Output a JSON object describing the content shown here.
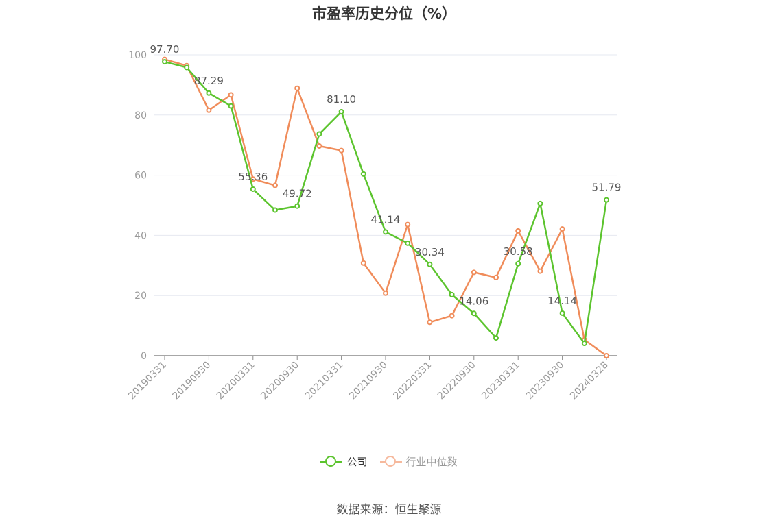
{
  "title": "市盈率历史分位（%）",
  "source": "数据来源：恒生聚源",
  "legend": {
    "company": "公司",
    "industry": "行业中位数"
  },
  "colors": {
    "company": "#5cc42e",
    "industry": "#f08c5a",
    "industry_legend": "#f6b99d",
    "grid": "#e6e8f0",
    "axis": "#8a8a8a",
    "tick_text": "#999999",
    "label_text": "#555555"
  },
  "chart_data": {
    "type": "line",
    "x": [
      "20190331",
      "20190630",
      "20190930",
      "20191231",
      "20200331",
      "20200630",
      "20200930",
      "20201231",
      "20210331",
      "20210630",
      "20210930",
      "20211231",
      "20220331",
      "20220630",
      "20220930",
      "20221231",
      "20230331",
      "20230630",
      "20230930",
      "20231231",
      "20240328"
    ],
    "x_tick_labels": [
      "20190331",
      "20190930",
      "20200331",
      "20200930",
      "20210331",
      "20210930",
      "20220331",
      "20220930",
      "20230331",
      "20230930",
      "20240328"
    ],
    "ylim": [
      0,
      100
    ],
    "y_ticks": [
      0,
      20,
      40,
      60,
      80,
      100
    ],
    "grid": true,
    "legend_position": "bottom",
    "series": [
      {
        "name": "公司",
        "values": [
          97.7,
          95.8,
          87.29,
          83.0,
          55.36,
          48.4,
          49.72,
          73.7,
          81.1,
          60.4,
          41.14,
          37.4,
          30.34,
          20.3,
          14.06,
          5.9,
          30.58,
          50.6,
          14.14,
          4.1,
          51.79
        ]
      },
      {
        "name": "行业中位数",
        "values": [
          98.5,
          96.4,
          81.6,
          86.7,
          58.7,
          56.6,
          88.9,
          69.7,
          68.2,
          30.8,
          20.8,
          43.6,
          11.1,
          13.3,
          27.7,
          26.0,
          41.5,
          28.1,
          42.1,
          5.3,
          0.0
        ]
      }
    ],
    "data_labels": [
      {
        "series": "公司",
        "x": "20190331",
        "value": 97.7,
        "text": "97.70"
      },
      {
        "series": "公司",
        "x": "20190930",
        "value": 87.29,
        "text": "87.29"
      },
      {
        "series": "公司",
        "x": "20200331",
        "value": 55.36,
        "text": "55.36"
      },
      {
        "series": "公司",
        "x": "20200930",
        "value": 49.72,
        "text": "49.72"
      },
      {
        "series": "公司",
        "x": "20210331",
        "value": 81.1,
        "text": "81.10"
      },
      {
        "series": "公司",
        "x": "20210930",
        "value": 41.14,
        "text": "41.14"
      },
      {
        "series": "公司",
        "x": "20220331",
        "value": 30.34,
        "text": "30.34"
      },
      {
        "series": "公司",
        "x": "20220930",
        "value": 14.06,
        "text": "14.06"
      },
      {
        "series": "公司",
        "x": "20230331",
        "value": 30.58,
        "text": "30.58"
      },
      {
        "series": "公司",
        "x": "20230930",
        "value": 14.14,
        "text": "14.14"
      },
      {
        "series": "公司",
        "x": "20240328",
        "value": 51.79,
        "text": "51.79"
      }
    ]
  }
}
